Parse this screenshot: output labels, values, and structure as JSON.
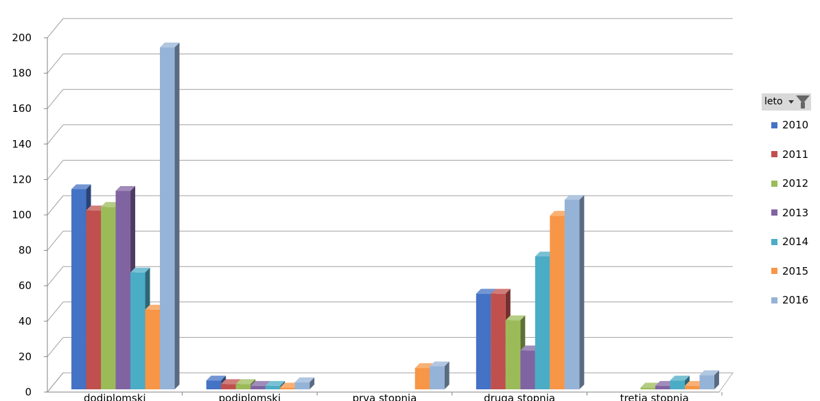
{
  "chart_data": {
    "type": "bar",
    "categories": [
      "dodiplomski",
      "podiplomski",
      "prva stopnja",
      "druga stopnja",
      "tretja stopnja"
    ],
    "series": [
      {
        "name": "2010",
        "color": "#4472c4",
        "values": [
          113,
          5,
          0,
          54,
          0
        ]
      },
      {
        "name": "2011",
        "color": "#c0504d",
        "values": [
          101,
          3,
          0,
          54,
          0
        ]
      },
      {
        "name": "2012",
        "color": "#9bbb59",
        "values": [
          103,
          3,
          0,
          39,
          1
        ]
      },
      {
        "name": "2013",
        "color": "#8064a2",
        "values": [
          112,
          2,
          0,
          22,
          2
        ]
      },
      {
        "name": "2014",
        "color": "#4bacc6",
        "values": [
          66,
          2,
          0,
          75,
          5
        ]
      },
      {
        "name": "2015",
        "color": "#f79646",
        "values": [
          45,
          1,
          12,
          98,
          2
        ]
      },
      {
        "name": "2016",
        "color": "#95b3d7",
        "values": [
          193,
          4,
          13,
          107,
          8
        ]
      }
    ],
    "y_ticks": [
      "0",
      "20",
      "40",
      "60",
      "80",
      "100",
      "120",
      "140",
      "160",
      "180",
      "200"
    ],
    "ylim": [
      0,
      200
    ],
    "grid": true,
    "legend": {
      "title": "leto",
      "position": "right"
    }
  }
}
